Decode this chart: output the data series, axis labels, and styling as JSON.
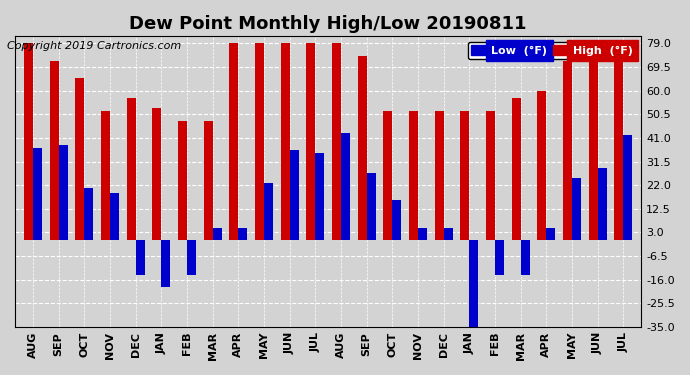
{
  "title": "Dew Point Monthly High/Low 20190811",
  "copyright": "Copyright 2019 Cartronics.com",
  "months": [
    "AUG",
    "SEP",
    "OCT",
    "NOV",
    "DEC",
    "JAN",
    "FEB",
    "MAR",
    "APR",
    "MAY",
    "JUN",
    "JUL",
    "AUG",
    "SEP",
    "OCT",
    "NOV",
    "DEC",
    "JAN",
    "FEB",
    "MAR",
    "APR",
    "MAY",
    "JUN",
    "JUL"
  ],
  "high": [
    79,
    72,
    65,
    52,
    57,
    53,
    48,
    48,
    79,
    79,
    79,
    79,
    79,
    74,
    52,
    52,
    52,
    52,
    52,
    57,
    60,
    72,
    72,
    79
  ],
  "low": [
    37,
    38,
    21,
    19,
    -14,
    -19,
    -14,
    5,
    5,
    23,
    36,
    35,
    43,
    27,
    16,
    5,
    5,
    -37,
    -14,
    -14,
    5,
    25,
    29,
    42
  ],
  "bar_width": 0.35,
  "ylim": [
    -35,
    82
  ],
  "yticks": [
    79.0,
    69.5,
    60.0,
    50.5,
    41.0,
    31.5,
    22.0,
    12.5,
    3.0,
    -6.5,
    -16.0,
    -25.5,
    -35.0
  ],
  "high_color": "#cc0000",
  "low_color": "#0000cc",
  "bg_color": "#d3d3d3",
  "plot_bg": "#d3d3d3",
  "legend_low_bg": "#0000cc",
  "legend_high_bg": "#cc0000",
  "grid_color": "white",
  "title_fontsize": 13,
  "tick_fontsize": 8,
  "copyright_fontsize": 8
}
